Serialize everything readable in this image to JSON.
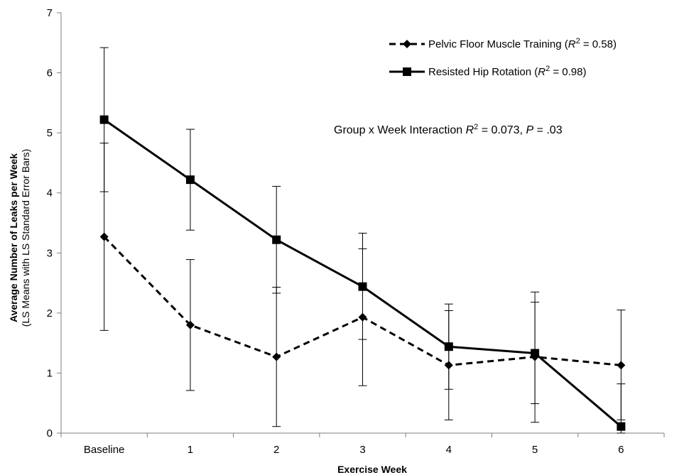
{
  "chart_data": {
    "type": "line",
    "xlabel": "Exercise Week",
    "ylabel": "Average Number of Leaks per Week",
    "ylabel_sub": "(LS Means with LS Standard Error Bars)",
    "categories": [
      "Baseline",
      "1",
      "2",
      "3",
      "4",
      "5",
      "6"
    ],
    "ylim": [
      0,
      7
    ],
    "yticks": [
      "0",
      "1",
      "2",
      "3",
      "4",
      "5",
      "6",
      "7"
    ],
    "grid": false,
    "legend_position": "top-right",
    "series": [
      {
        "name_main": "Pelvic Floor Muscle Training (",
        "name_r": "R",
        "name_sup": "2",
        "name_tail": " = 0.58)",
        "style": "dashed",
        "marker": "diamond",
        "color": "#000000",
        "values": [
          3.27,
          1.8,
          1.27,
          1.93,
          1.13,
          1.27,
          1.13
        ],
        "err_low": [
          1.71,
          0.71,
          0.11,
          0.79,
          0.22,
          0.18,
          0.22
        ],
        "err_high": [
          4.83,
          2.89,
          2.43,
          3.07,
          2.04,
          2.18,
          2.05
        ]
      },
      {
        "name_main": "Resisted Hip Rotation (",
        "name_r": "R",
        "name_sup": "2",
        "name_tail": " = 0.98)",
        "style": "solid",
        "marker": "square",
        "color": "#000000",
        "values": [
          5.22,
          4.22,
          3.22,
          2.44,
          1.44,
          1.33,
          0.11
        ],
        "err_low": [
          4.02,
          3.38,
          2.33,
          1.56,
          0.73,
          0.49,
          0.0
        ],
        "err_high": [
          6.42,
          5.06,
          4.11,
          3.33,
          2.15,
          2.35,
          0.82
        ]
      }
    ],
    "annotation": {
      "prefix": "Group x Week Interaction ",
      "r": "R",
      "sup": "2",
      "mid": " = 0.073, ",
      "p": "P",
      "tail": " = .03"
    }
  }
}
